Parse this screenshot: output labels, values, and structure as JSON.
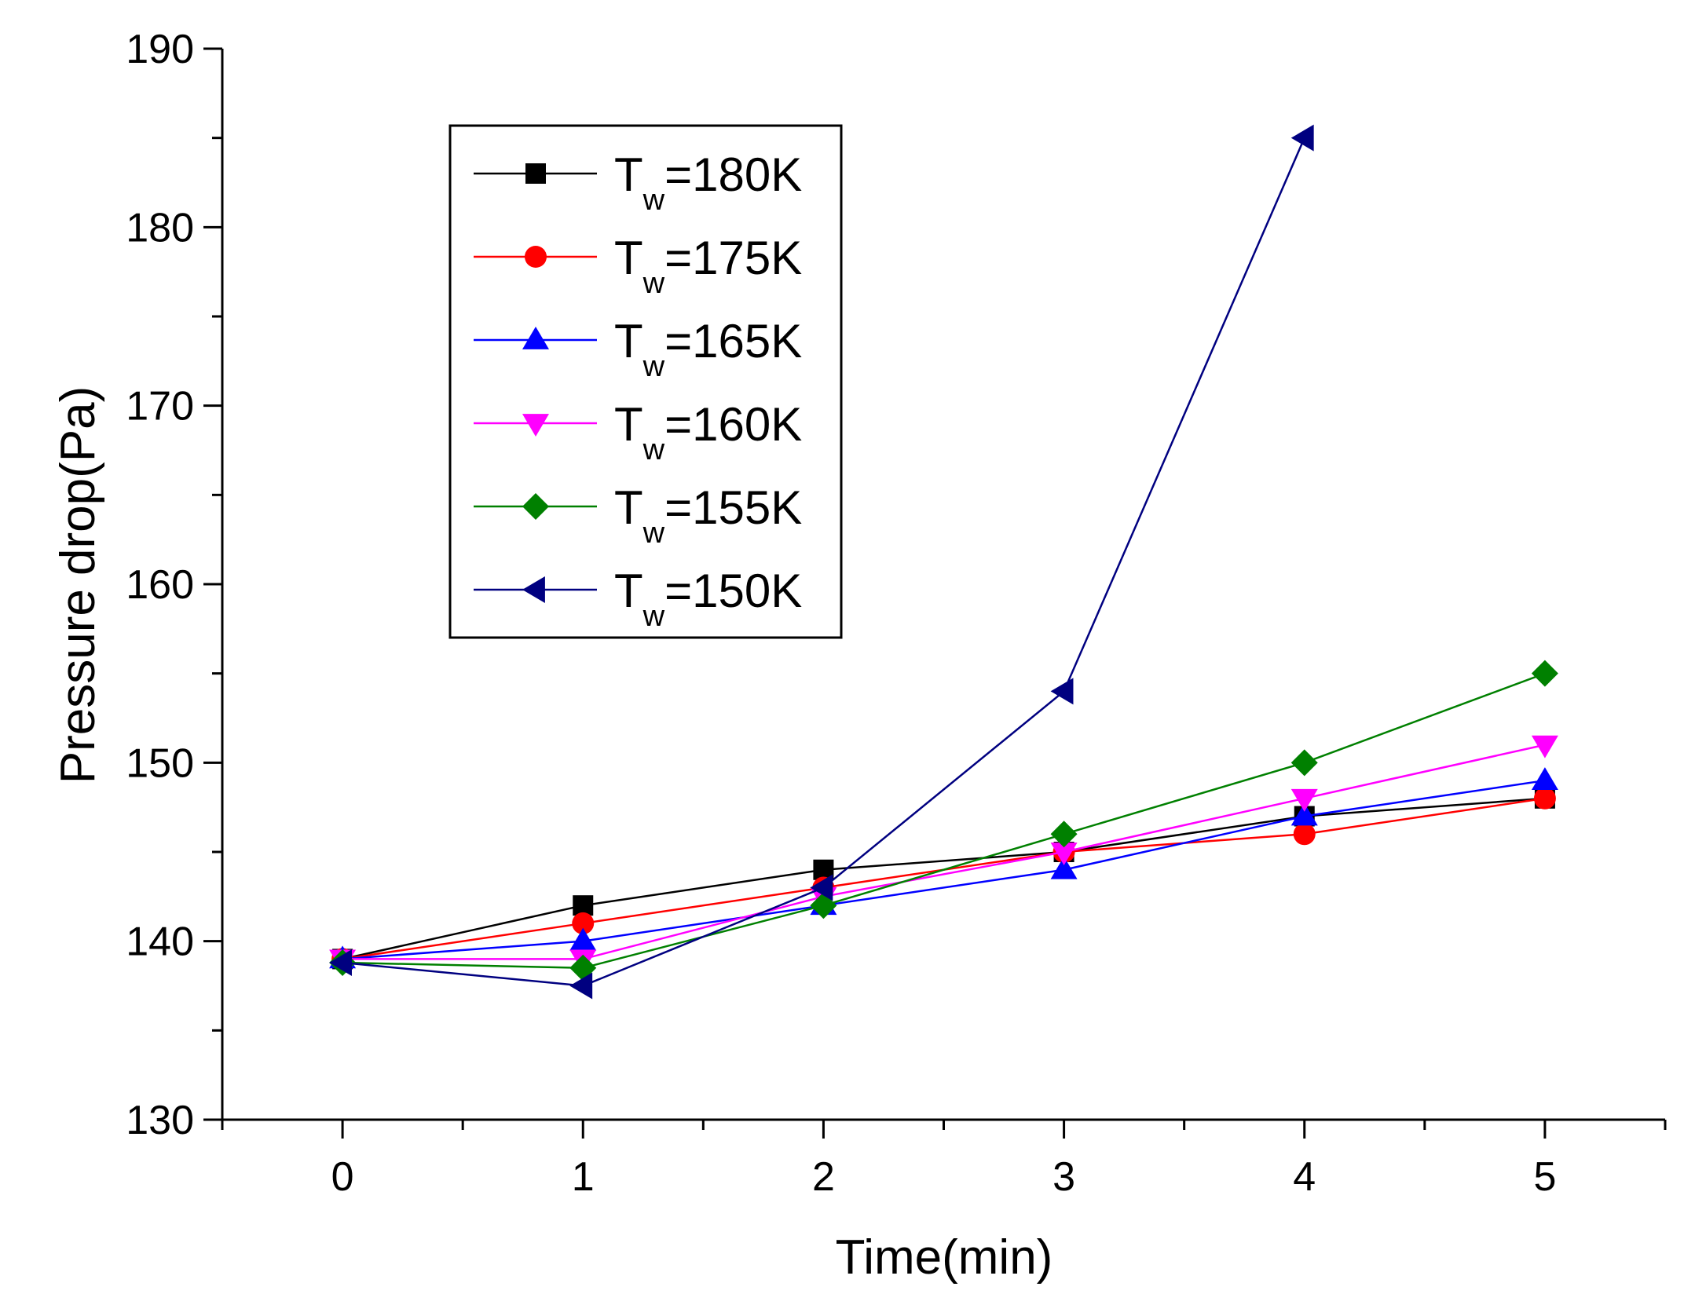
{
  "chart_data": {
    "type": "line",
    "xlabel": "Time(min)",
    "ylabel": "Pressure drop(Pa)",
    "xlim": [
      -0.5,
      5.5
    ],
    "ylim": [
      130,
      190
    ],
    "x_ticks": [
      0,
      1,
      2,
      3,
      4,
      5
    ],
    "y_ticks": [
      130,
      140,
      150,
      160,
      170,
      180,
      190
    ],
    "grid": false,
    "legend_position": "top-left",
    "x": [
      0,
      1,
      2,
      3,
      4,
      5
    ],
    "series": [
      {
        "name": "Tw=180K",
        "label_main": "T",
        "label_sub": "w",
        "label_rest": "=180K",
        "color": "#000000",
        "marker": "square",
        "values": [
          139,
          142,
          144,
          145,
          147,
          148
        ]
      },
      {
        "name": "Tw=175K",
        "label_main": "T",
        "label_sub": "w",
        "label_rest": "=175K",
        "color": "#ff0000",
        "marker": "circle",
        "values": [
          139,
          141,
          143,
          145,
          146,
          148
        ]
      },
      {
        "name": "Tw=165K",
        "label_main": "T",
        "label_sub": "w",
        "label_rest": "=165K",
        "color": "#0000ff",
        "marker": "triangle-up",
        "values": [
          139,
          140,
          142,
          144,
          147,
          149
        ]
      },
      {
        "name": "Tw=160K",
        "label_main": "T",
        "label_sub": "w",
        "label_rest": "=160K",
        "color": "#ff00ff",
        "marker": "triangle-down",
        "values": [
          139,
          139,
          142.5,
          145,
          148,
          151
        ]
      },
      {
        "name": "Tw=155K",
        "label_main": "T",
        "label_sub": "w",
        "label_rest": "=155K",
        "color": "#008000",
        "marker": "diamond",
        "values": [
          138.8,
          138.5,
          142,
          146,
          150,
          155
        ]
      },
      {
        "name": "Tw=150K",
        "label_main": "T",
        "label_sub": "w",
        "label_rest": "=150K",
        "color": "#000080",
        "marker": "triangle-left",
        "values": [
          138.8,
          137.5,
          143,
          154,
          185,
          null
        ]
      }
    ]
  }
}
